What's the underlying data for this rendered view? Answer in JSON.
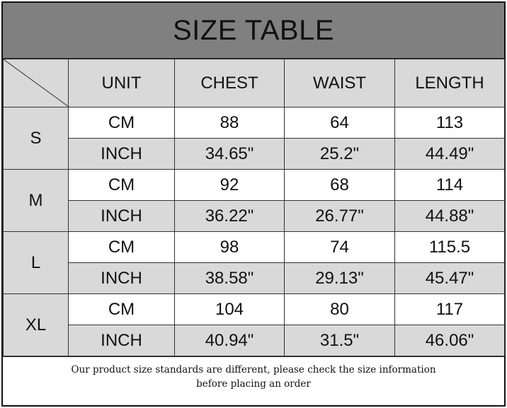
{
  "title": "SIZE TABLE",
  "headers": [
    "UNIT",
    "CHEST",
    "WAIST",
    "LENGTH"
  ],
  "sizes": [
    {
      "size": "S",
      "rows": [
        {
          "unit": "CM",
          "chest": "88",
          "waist": "64",
          "length": "113"
        },
        {
          "unit": "INCH",
          "chest": "34.65\"",
          "waist": "25.2\"",
          "length": "44.49\""
        }
      ]
    },
    {
      "size": "M",
      "rows": [
        {
          "unit": "CM",
          "chest": "92",
          "waist": "68",
          "length": "114"
        },
        {
          "unit": "INCH",
          "chest": "36.22\"",
          "waist": "26.77\"",
          "length": "44.88\""
        }
      ]
    },
    {
      "size": "L",
      "rows": [
        {
          "unit": "CM",
          "chest": "98",
          "waist": "74",
          "length": "115.5"
        },
        {
          "unit": "INCH",
          "chest": "38.58\"",
          "waist": "29.13\"",
          "length": "45.47\""
        }
      ]
    },
    {
      "size": "XL",
      "rows": [
        {
          "unit": "CM",
          "chest": "104",
          "waist": "80",
          "length": "117"
        },
        {
          "unit": "INCH",
          "chest": "40.94\"",
          "waist": "31.5\"",
          "length": "46.06\""
        }
      ]
    }
  ],
  "note_line1": "Our product size standards are different, please check the size information",
  "note_line2": "before placing an order"
}
